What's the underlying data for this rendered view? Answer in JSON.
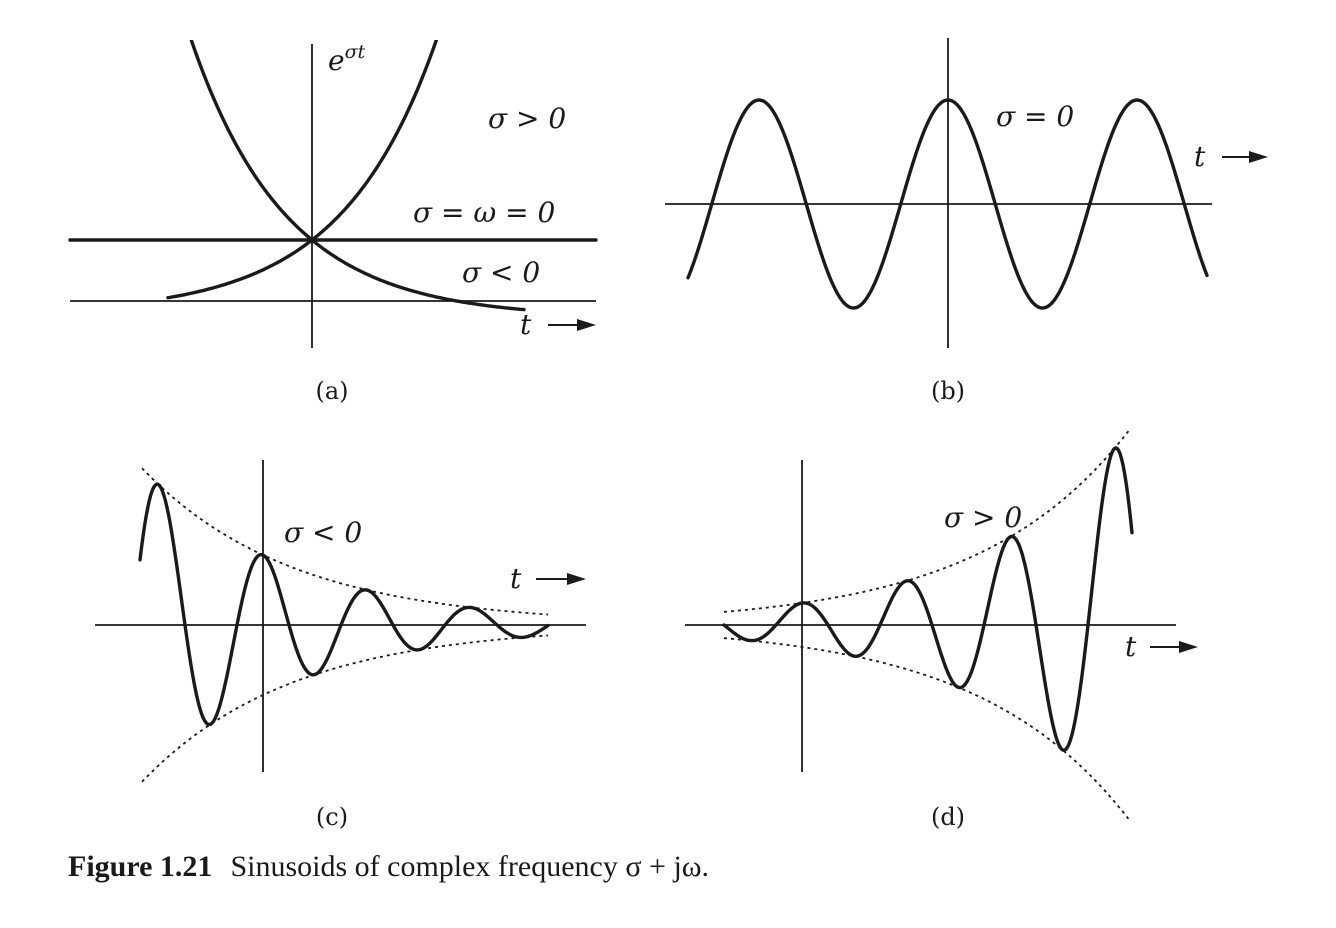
{
  "figure": {
    "caption_label": "Figure 1.21",
    "caption_text": "Sinusoids of complex frequency σ + jω."
  },
  "panels": {
    "a": {
      "sublabel": "(a)",
      "y_label_base": "e",
      "y_label_exp": "σt",
      "x_label": "t",
      "label_pos": "σ > 0",
      "label_zero": "σ = ω = 0",
      "label_neg": "σ < 0"
    },
    "b": {
      "sublabel": "(b)",
      "label": "σ = 0",
      "x_label": "t"
    },
    "c": {
      "sublabel": "(c)",
      "label": "σ < 0",
      "x_label": "t"
    },
    "d": {
      "sublabel": "(d)",
      "label": "σ > 0",
      "x_label": "t"
    }
  }
}
